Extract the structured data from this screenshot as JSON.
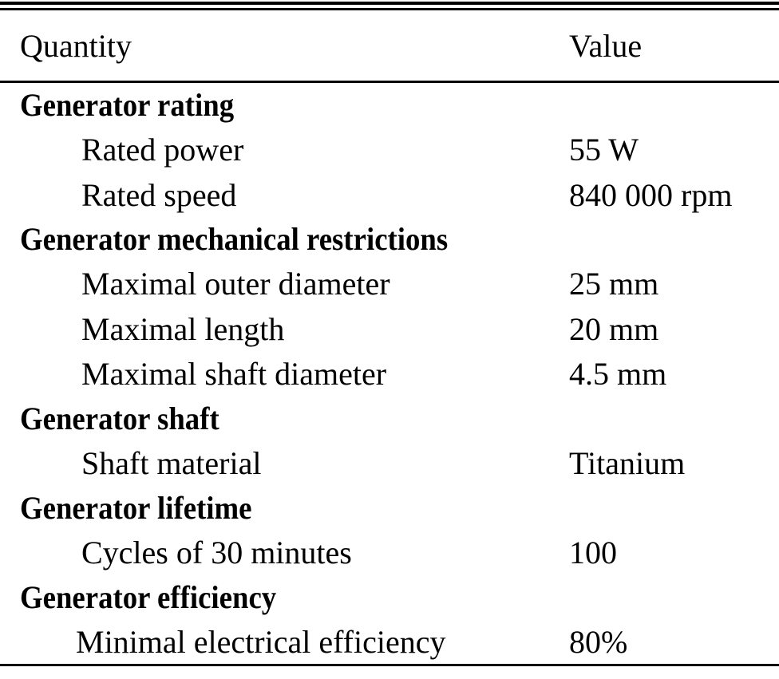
{
  "table": {
    "header": {
      "quantity": "Quantity",
      "value": "Value"
    },
    "sections": [
      {
        "title": "Generator rating",
        "items": [
          {
            "quantity": "Rated power",
            "value": "55 W"
          },
          {
            "quantity": "Rated speed",
            "value": "840 000 rpm"
          }
        ]
      },
      {
        "title": "Generator mechanical restrictions",
        "items": [
          {
            "quantity": "Maximal outer diameter",
            "value": "25 mm"
          },
          {
            "quantity": "Maximal length",
            "value": "20 mm"
          },
          {
            "quantity": "Maximal shaft diameter",
            "value": "4.5 mm"
          }
        ]
      },
      {
        "title": "Generator shaft",
        "items": [
          {
            "quantity": "Shaft material",
            "value": "Titanium"
          }
        ]
      },
      {
        "title": "Generator lifetime",
        "items": [
          {
            "quantity": "Cycles of 30 minutes",
            "value": "100"
          }
        ]
      },
      {
        "title": "Generator efficiency",
        "items": [
          {
            "quantity": "Minimal electrical efficiency",
            "value": "80%"
          }
        ]
      }
    ]
  }
}
